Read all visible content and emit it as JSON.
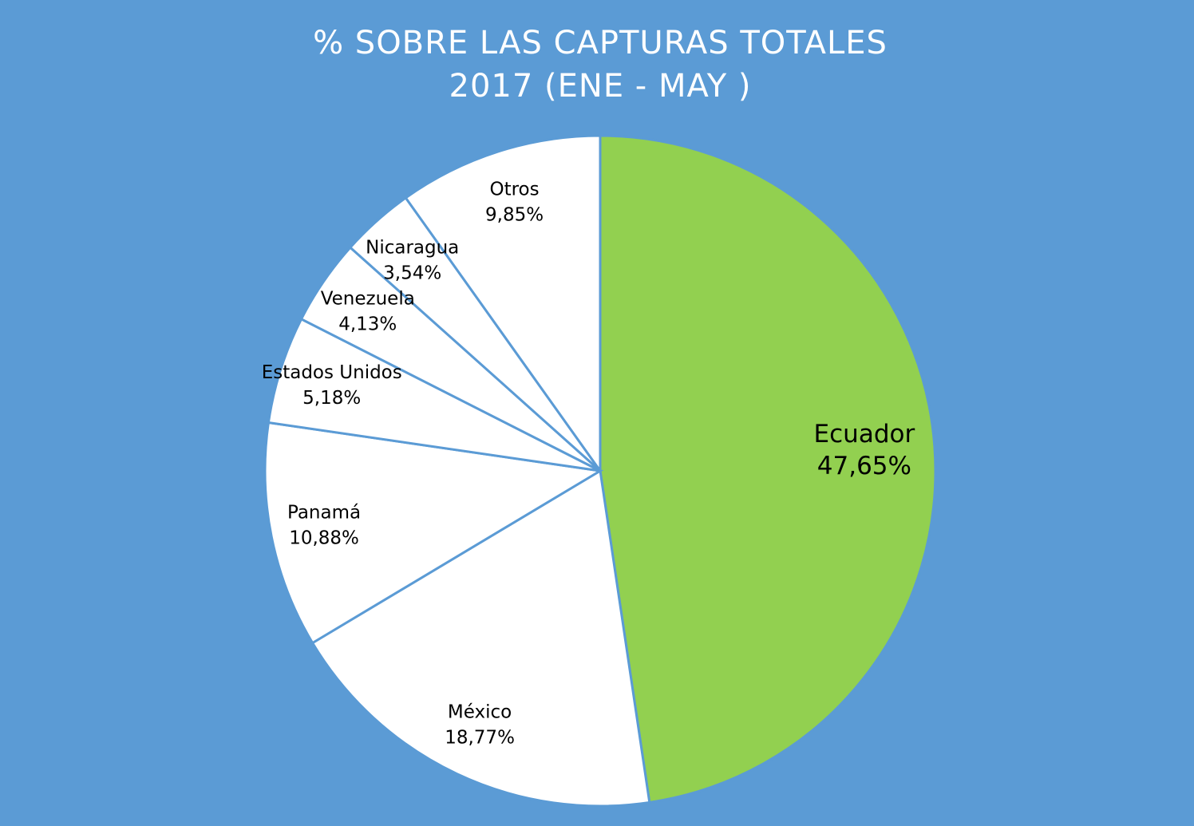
{
  "chart_data": {
    "type": "pie",
    "title": [
      "% SOBRE LAS CAPTURAS TOTALES",
      "2017 (ENE - MAY )"
    ],
    "categories": [
      "Ecuador",
      "México",
      "Panamá",
      "Estados Unidos",
      "Venezuela",
      "Nicaragua",
      "Otros"
    ],
    "values": [
      47.65,
      18.77,
      10.88,
      5.18,
      4.13,
      3.54,
      9.85
    ],
    "value_labels": [
      "47,65%",
      "18,77%",
      "10,88%",
      "5,18%",
      "4,13%",
      "3,54%",
      "9,85%"
    ],
    "colors": [
      "#92d050",
      "#ffffff",
      "#ffffff",
      "#ffffff",
      "#ffffff",
      "#ffffff",
      "#ffffff"
    ]
  }
}
